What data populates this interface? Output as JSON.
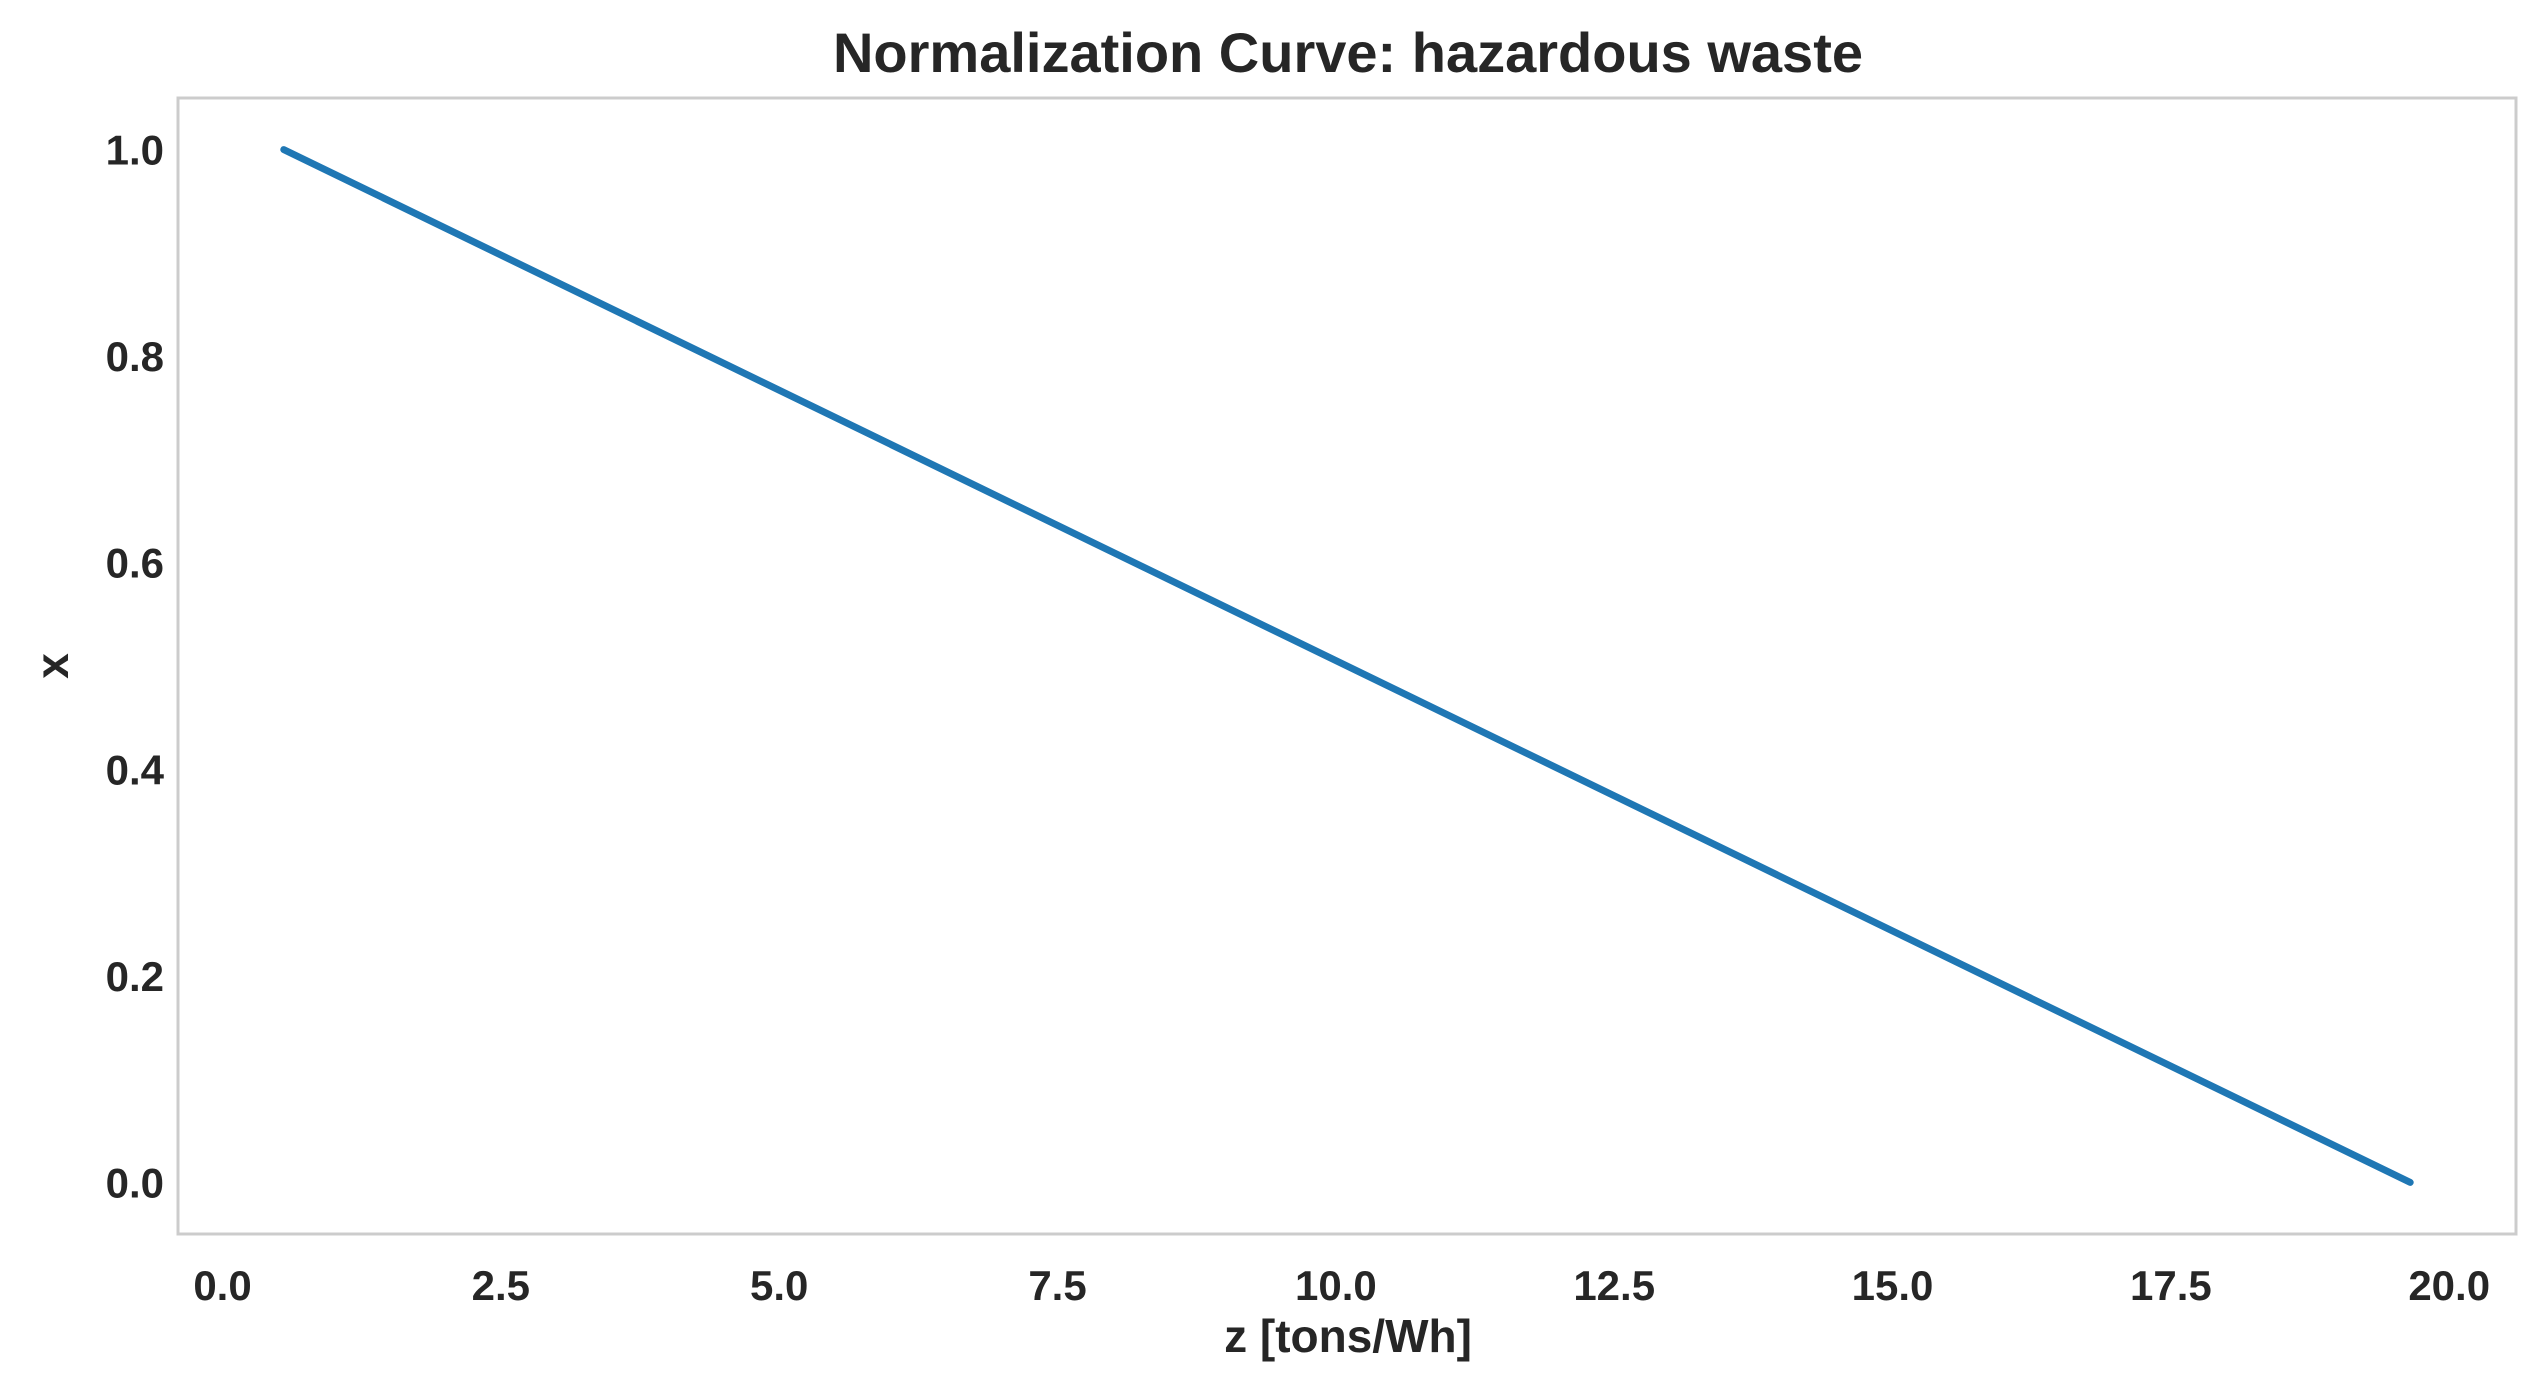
{
  "chart_data": {
    "type": "line",
    "title": "Normalization Curve: hazardous waste",
    "xlabel": "z [tons/Wh]",
    "ylabel": "x",
    "xlim": [
      -0.4,
      20.6
    ],
    "ylim": [
      -0.05,
      1.05
    ],
    "x_ticks": [
      "0.0",
      "2.5",
      "5.0",
      "7.5",
      "10.0",
      "12.5",
      "15.0",
      "17.5",
      "20.0"
    ],
    "y_ticks": [
      "0.0",
      "0.2",
      "0.4",
      "0.6",
      "0.8",
      "1.0"
    ],
    "grid": false,
    "series": [
      {
        "x": [
          0.55,
          19.65
        ],
        "y": [
          1.0,
          0.0
        ],
        "color": "#1f77b4"
      }
    ],
    "colors": {
      "line": "#1f77b4",
      "frame": "#cccccc",
      "text": "#262626",
      "background": "#ffffff"
    }
  }
}
